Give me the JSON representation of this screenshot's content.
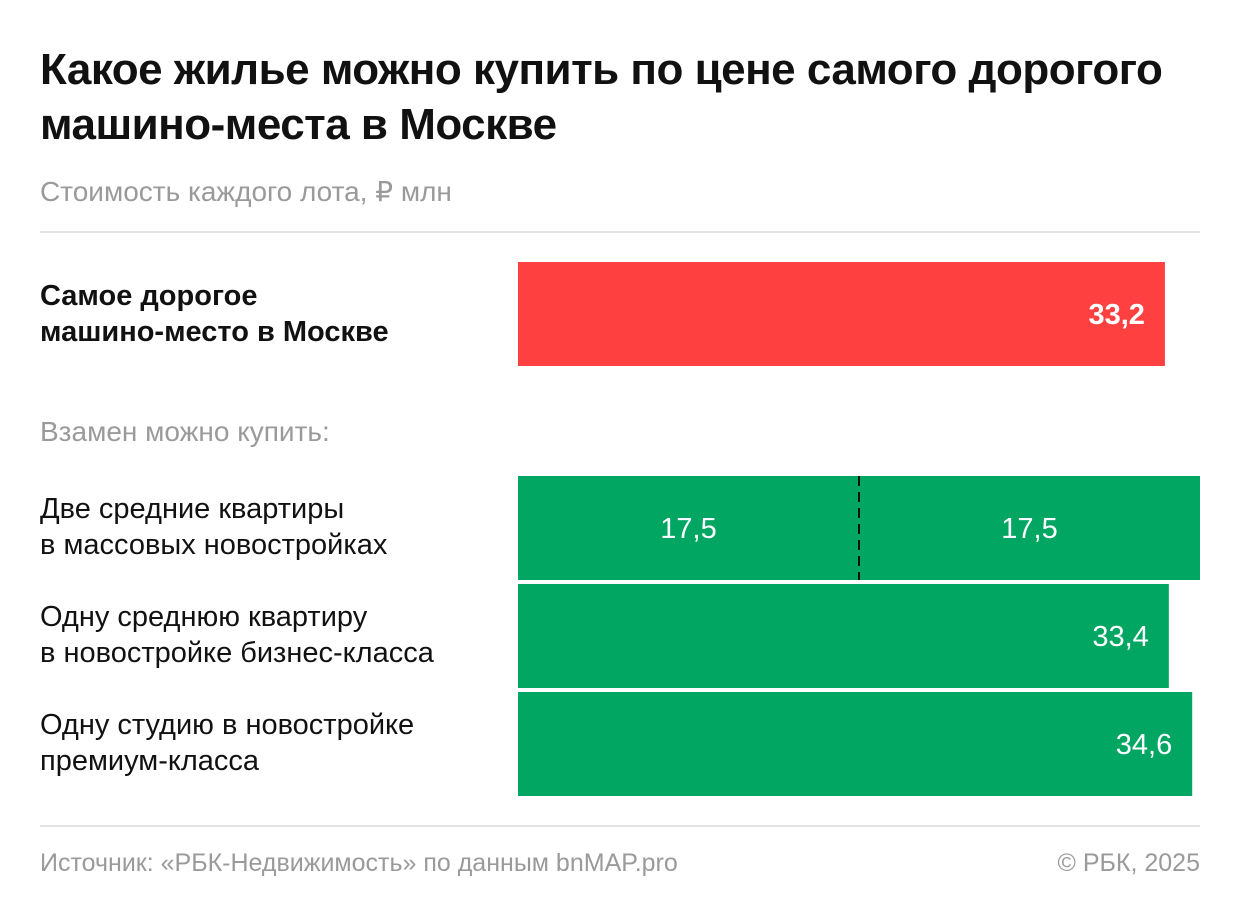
{
  "title": "Какое жилье можно купить по цене самого дорогого машино-места в Москве",
  "subtitle": "Стоимость каждого лота, ₽ млн",
  "section_label": "Взамен можно купить:",
  "footer": {
    "source": "Источник: «РБК-Недвижимость» по данным bnMAP.pro",
    "credit": "© РБК, 2025"
  },
  "colors": {
    "highlight": "#ff4040",
    "alternative": "#00a661",
    "divider": "#111111"
  },
  "chart_data": {
    "type": "bar",
    "orientation": "horizontal",
    "title": "Какое жилье можно купить по цене самого дорогого машино-места в Москве",
    "subtitle": "Стоимость каждого лота, ₽ млн",
    "unit": "₽ млн",
    "xlim": [
      0,
      35
    ],
    "grid": false,
    "legend": "none",
    "categories": [
      "Самое дорогое машино-место в Москве",
      "Две средние квартиры в массовых новостройках",
      "Одну среднюю квартиру в новостройке бизнес-класса",
      "Одну студию в новостройке премиум-класса"
    ],
    "rows": [
      {
        "label_lines": [
          "Самое дорогое",
          "машино-место в Москве"
        ],
        "segments": [
          33.2
        ],
        "segment_labels": [
          "33,2"
        ],
        "color": "#ff4040",
        "emphasis": true
      },
      {
        "label_lines": [
          "Две средние квартиры",
          "в массовых новостройках"
        ],
        "segments": [
          17.5,
          17.5
        ],
        "segment_labels": [
          "17,5",
          "17,5"
        ],
        "color": "#00a661",
        "emphasis": false
      },
      {
        "label_lines": [
          "Одну среднюю квартиру",
          "в новостройке бизнес-класса"
        ],
        "segments": [
          33.4
        ],
        "segment_labels": [
          "33,4"
        ],
        "color": "#00a661",
        "emphasis": false
      },
      {
        "label_lines": [
          "Одну студию в новостройке",
          "премиум-класса"
        ],
        "segments": [
          34.6
        ],
        "segment_labels": [
          "34,6"
        ],
        "color": "#00a661",
        "emphasis": false
      }
    ]
  }
}
